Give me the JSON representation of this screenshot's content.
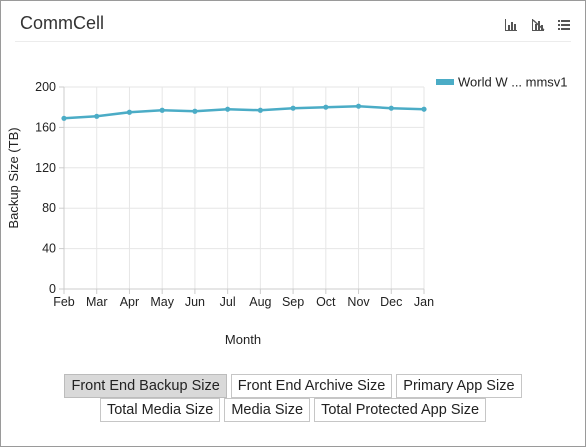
{
  "panel": {
    "title": "CommCell"
  },
  "toolbar": {
    "icons": [
      "bar-chart-icon",
      "clear-chart-icon",
      "list-view-icon"
    ]
  },
  "colors": {
    "series": "#4bacc6",
    "grid": "#e6e6e6",
    "axis": "#cccccc",
    "button_active_bg": "#d9d9d9"
  },
  "chart_data": {
    "type": "line",
    "title": "",
    "xlabel": "Month",
    "ylabel": "Backup Size (TB)",
    "ylim": [
      0,
      200
    ],
    "yticks": [
      0,
      40,
      80,
      120,
      160,
      200
    ],
    "grid": true,
    "legend_position": "top-right",
    "categories": [
      "Feb",
      "Mar",
      "Apr",
      "May",
      "Jun",
      "Jul",
      "Aug",
      "Sep",
      "Oct",
      "Nov",
      "Dec",
      "Jan"
    ],
    "series": [
      {
        "name": "World W ... mmsv1",
        "values": [
          169,
          171,
          175,
          177,
          176,
          178,
          177,
          179,
          180,
          181,
          179,
          178
        ]
      }
    ]
  },
  "buttons": [
    [
      {
        "label": "Front End Backup Size",
        "active": true
      },
      {
        "label": "Front End Archive Size",
        "active": false
      },
      {
        "label": "Primary App Size",
        "active": false
      }
    ],
    [
      {
        "label": "Total Media Size",
        "active": false
      },
      {
        "label": "Media Size",
        "active": false
      },
      {
        "label": "Total Protected App Size",
        "active": false
      }
    ]
  ]
}
